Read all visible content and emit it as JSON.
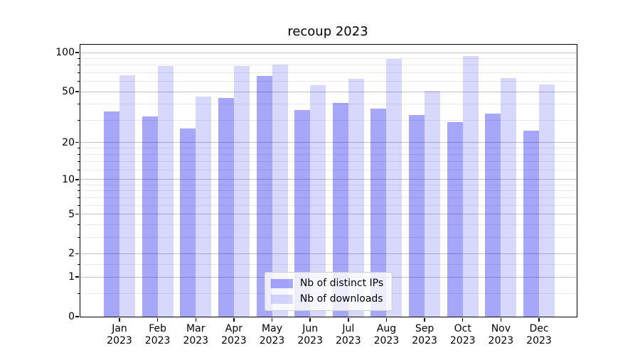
{
  "title": "recoup 2023",
  "chart_data": {
    "type": "bar",
    "title": "recoup 2023",
    "xlabel": "",
    "ylabel": "",
    "scale": "log1p",
    "ylim": [
      0,
      115
    ],
    "grid": true,
    "legend_position": "lower center",
    "categories": [
      {
        "month": "Jan",
        "year": "2023"
      },
      {
        "month": "Feb",
        "year": "2023"
      },
      {
        "month": "Mar",
        "year": "2023"
      },
      {
        "month": "Apr",
        "year": "2023"
      },
      {
        "month": "May",
        "year": "2023"
      },
      {
        "month": "Jun",
        "year": "2023"
      },
      {
        "month": "Jul",
        "year": "2023"
      },
      {
        "month": "Aug",
        "year": "2023"
      },
      {
        "month": "Sep",
        "year": "2023"
      },
      {
        "month": "Oct",
        "year": "2023"
      },
      {
        "month": "Nov",
        "year": "2023"
      },
      {
        "month": "Dec",
        "year": "2023"
      }
    ],
    "series": [
      {
        "name": "Nb of distinct IPs",
        "color": "rgba(10,10,240,0.36)",
        "color_hex_on_white": "#a6a6fa",
        "values": [
          35,
          32,
          26,
          45,
          66,
          36,
          41,
          37,
          33,
          29,
          34,
          25
        ]
      },
      {
        "name": "Nb of downloads",
        "color": "rgba(10,10,240,0.16)",
        "color_hex_on_white": "#d8d8fd",
        "values": [
          67,
          79,
          46,
          79,
          81,
          56,
          63,
          89,
          51,
          94,
          64,
          57
        ]
      }
    ],
    "yticks": [
      {
        "value": 100,
        "label": "100"
      },
      {
        "value": 50,
        "label": "50"
      },
      {
        "value": 20,
        "label": "20"
      },
      {
        "value": 10,
        "label": "10"
      },
      {
        "value": 5,
        "label": "5"
      },
      {
        "value": 2,
        "label": "2"
      },
      {
        "value": 1,
        "label": "1"
      },
      {
        "value": 0,
        "label": "0"
      }
    ],
    "minor_gridlines": [
      0.5,
      1.5,
      3,
      4,
      6,
      7,
      8,
      9,
      12,
      14,
      16,
      18,
      30,
      40,
      60,
      70,
      80,
      90
    ],
    "colors": {
      "grid_major": "#c3c3c3",
      "grid_minor": "#eaeaea",
      "spine": "#000000",
      "text": "#000000",
      "legend_border": "#cccccc"
    }
  }
}
